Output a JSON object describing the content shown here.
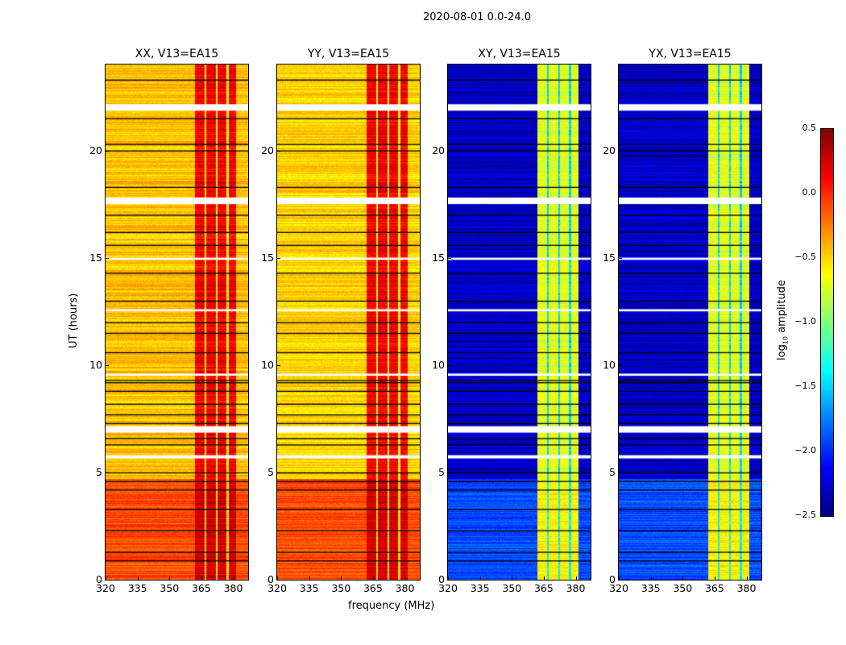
{
  "chart_data": {
    "type": "heatmap",
    "title": "2020-08-01 0.0-24.0",
    "xlabel": "frequency (MHz)",
    "ylabel": "UT (hours)",
    "xlim": [
      320,
      387
    ],
    "ylim": [
      0,
      24
    ],
    "xticks": [
      "320",
      "335",
      "350",
      "365",
      "380"
    ],
    "yticks": [
      "0",
      "5",
      "10",
      "15",
      "20"
    ],
    "panels": [
      {
        "title": "XX, V13=EA15",
        "base": -0.45,
        "early_base": -0.1,
        "band": [
          362,
          381
        ],
        "band_level": 0.15
      },
      {
        "title": "YY, V13=EA15",
        "base": -0.5,
        "early_base": -0.1,
        "band": [
          362,
          381
        ],
        "band_level": 0.15
      },
      {
        "title": "XY, V13=EA15",
        "base": -2.3,
        "early_base": -1.9,
        "band": [
          362,
          381
        ],
        "band_level": -0.7
      },
      {
        "title": "YX, V13=EA15",
        "base": -2.3,
        "early_base": -1.9,
        "band": [
          362,
          381
        ],
        "band_level": -0.7
      }
    ],
    "early_period_hours": [
      0,
      4.7
    ],
    "flagged_hours_white": [
      [
        21.85,
        22.15
      ],
      [
        17.5,
        17.8
      ],
      [
        6.85,
        7.15
      ],
      [
        5.65,
        5.8
      ],
      [
        9.5,
        9.6
      ],
      [
        14.9,
        15.0
      ],
      [
        12.5,
        12.6
      ]
    ],
    "flagged_hours_black": [
      0.9,
      1.3,
      2.3,
      3.3,
      4.2,
      4.6,
      5.0,
      6.3,
      6.6,
      7.3,
      7.7,
      8.2,
      8.8,
      9.2,
      9.3,
      10.6,
      11.5,
      12.0,
      13.0,
      14.3,
      15.6,
      16.2,
      17.0,
      18.3,
      20.0,
      20.3,
      21.5,
      23.3
    ],
    "colorbar": {
      "label": "log10 amplitude",
      "label_main": "log",
      "label_sub": "10",
      "label_rest": " amplitude",
      "range": [
        -2.5,
        0.5
      ],
      "ticks": [
        "0.5",
        "0.0",
        "−0.5",
        "−1.0",
        "−1.5",
        "−2.0",
        "−2.5"
      ],
      "colormap": "jet"
    }
  }
}
